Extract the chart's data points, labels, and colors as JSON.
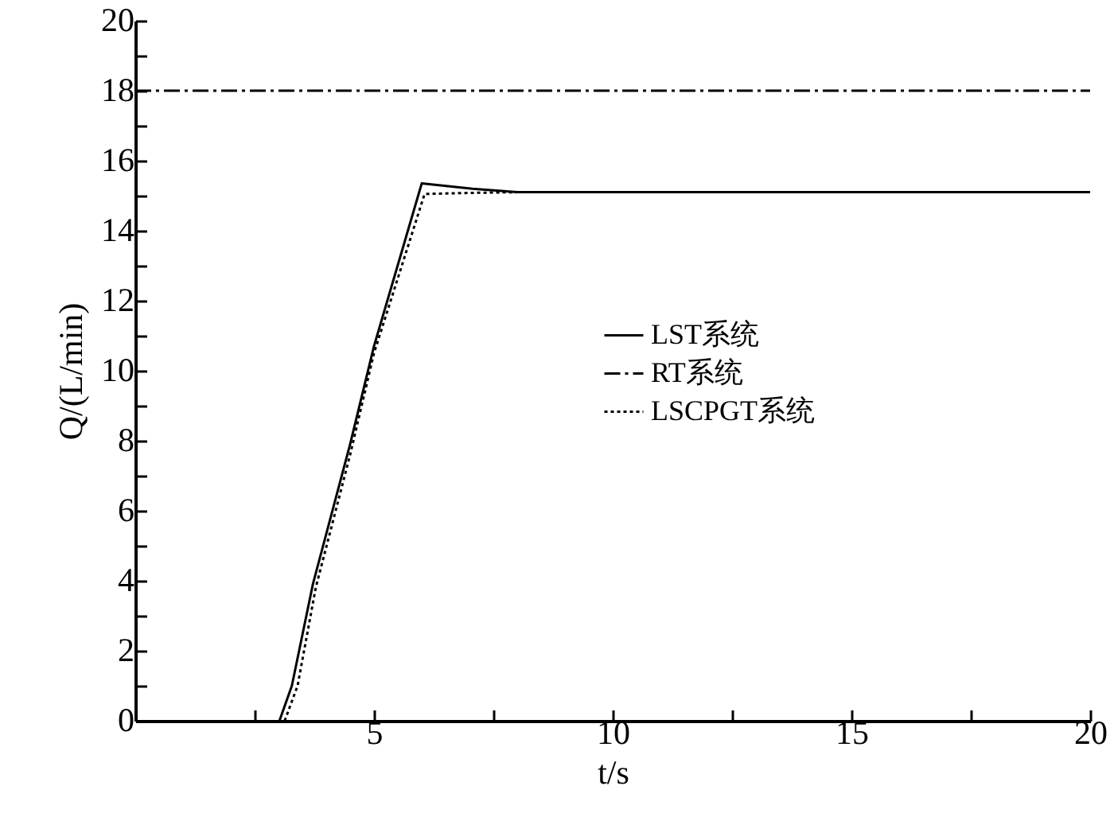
{
  "chart_data": {
    "type": "line",
    "xlabel": "t/s",
    "ylabel": "Q/(L/min)",
    "xlim": [
      0,
      20
    ],
    "ylim": [
      0,
      20
    ],
    "xticks": [
      {
        "value": 2.5,
        "label": null
      },
      5,
      {
        "value": 7.5,
        "label": null
      },
      10,
      {
        "value": 12.5,
        "label": null
      },
      15,
      {
        "value": 17.5,
        "label": null
      },
      20
    ],
    "yticks": [
      0,
      {
        "value": 1,
        "label": null
      },
      2,
      {
        "value": 3,
        "label": null
      },
      4,
      {
        "value": 5,
        "label": null
      },
      6,
      {
        "value": 7,
        "label": null
      },
      8,
      {
        "value": 9,
        "label": null
      },
      10,
      {
        "value": 11,
        "label": null
      },
      12,
      {
        "value": 13,
        "label": null
      },
      14,
      {
        "value": 15,
        "label": null
      },
      16,
      {
        "value": 17,
        "label": null
      },
      18,
      {
        "value": 19,
        "label": null
      },
      20
    ],
    "grid": false,
    "legend": "right",
    "marker": "none",
    "series": [
      {
        "name": "LST系统",
        "color": "#000000",
        "line_style": "solid",
        "x": [
          3.02,
          3.28,
          3.72,
          4.5,
          5,
          6,
          7.06,
          8,
          20
        ],
        "values": [
          0,
          1,
          3.9,
          7.9,
          10.7,
          15.35,
          15.2,
          15.1,
          15.1
        ]
      },
      {
        "name": "RT系统",
        "color": "#000000",
        "line_style": "dashed",
        "x": [
          0,
          20
        ],
        "values": [
          18,
          18
        ]
      },
      {
        "name": "LSCPGT系统",
        "color": "#000000",
        "line_style": "dotted",
        "x": [
          3.13,
          3.4,
          3.78,
          4.5,
          5,
          6.06,
          7,
          8,
          20
        ],
        "values": [
          0,
          1,
          3.8,
          7.6,
          10.5,
          15.05,
          15.08,
          15.1,
          15.1
        ]
      }
    ]
  }
}
